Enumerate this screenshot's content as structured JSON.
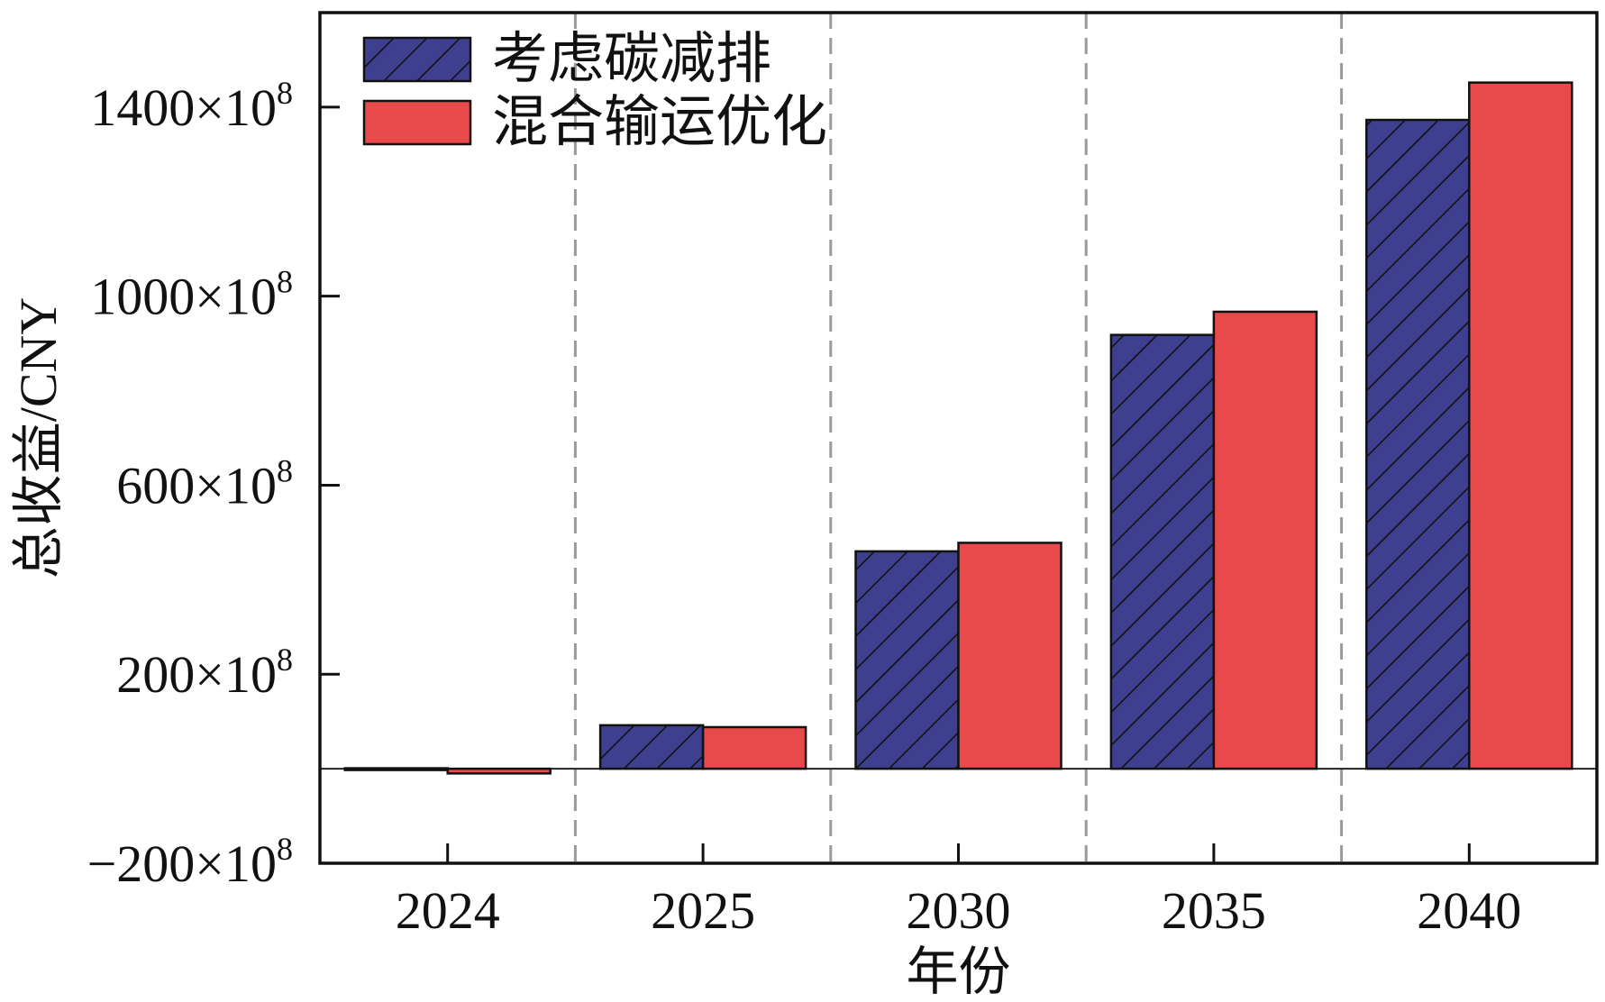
{
  "chart_data": {
    "type": "bar",
    "title": "",
    "xlabel": "年份",
    "ylabel": "总收益/CNY",
    "categories": [
      "2024",
      "2025",
      "2030",
      "2035",
      "2040"
    ],
    "series": [
      {
        "name": "考虑碳减排",
        "values": [
          1,
          92,
          460,
          918,
          1373
        ],
        "color": "#3f3f8f",
        "pattern": "diagonal-hatch"
      },
      {
        "name": "混合输运优化",
        "values": [
          -10,
          88,
          478,
          967,
          1452
        ],
        "color": "#e84a4b",
        "pattern": "solid"
      }
    ],
    "ylim": [
      -200,
      1600
    ],
    "yticks": [
      {
        "value": -200,
        "base": "−200×10",
        "exp": "8"
      },
      {
        "value": 200,
        "base": "200×10",
        "exp": "8"
      },
      {
        "value": 600,
        "base": "600×10",
        "exp": "8"
      },
      {
        "value": 1000,
        "base": "1000×10",
        "exp": "8"
      },
      {
        "value": 1400,
        "base": "1400×10",
        "exp": "8"
      }
    ],
    "units_multiplier": "×10^8",
    "grid": false,
    "category_separators": "dashed",
    "legend_position": "top-left"
  }
}
